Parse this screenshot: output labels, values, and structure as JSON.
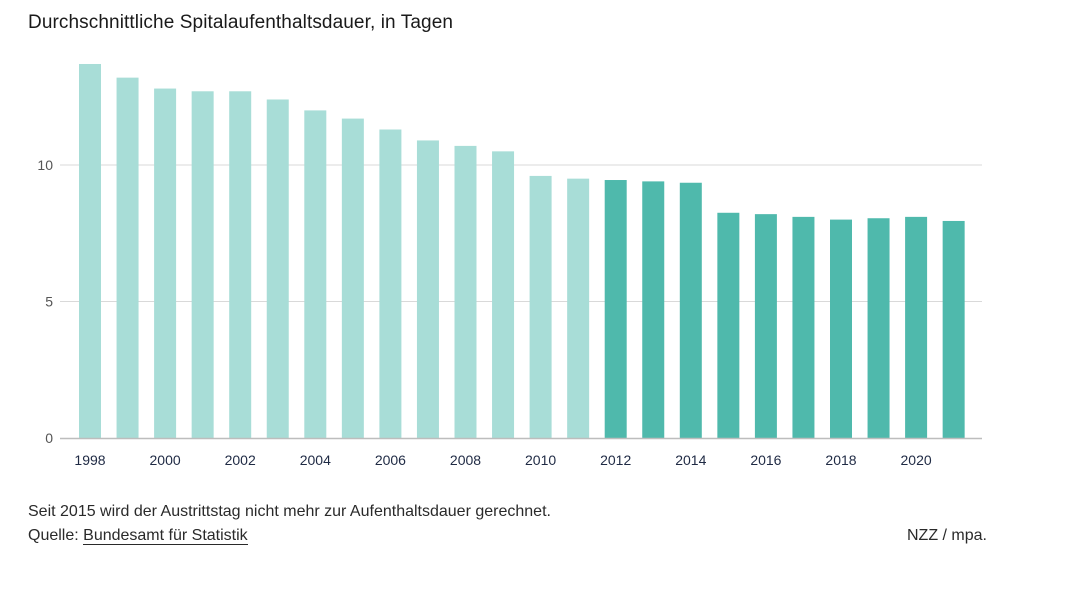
{
  "chart_data": {
    "type": "bar",
    "title": "Durchschnittliche Spitalaufenthaltsdauer, in Tagen",
    "xlabel": "",
    "ylabel": "",
    "ylim": [
      0,
      13.8
    ],
    "yticks": [
      0,
      5,
      10
    ],
    "xtick_labels": [
      "1998",
      "2000",
      "2002",
      "2004",
      "2006",
      "2008",
      "2010",
      "2012",
      "2014",
      "2016",
      "2018",
      "2020"
    ],
    "categories": [
      "1998",
      "1999",
      "2000",
      "2001",
      "2002",
      "2003",
      "2004",
      "2005",
      "2006",
      "2007",
      "2008",
      "2009",
      "2010",
      "2011",
      "2012",
      "2013",
      "2014",
      "2015",
      "2016",
      "2017",
      "2018",
      "2019",
      "2020",
      "2021"
    ],
    "values": [
      13.7,
      13.2,
      12.8,
      12.7,
      12.7,
      12.4,
      12.0,
      11.7,
      11.3,
      10.9,
      10.7,
      10.5,
      9.6,
      9.5,
      9.45,
      9.4,
      9.35,
      8.25,
      8.2,
      8.1,
      8.0,
      8.05,
      8.1,
      7.95
    ],
    "highlight_from_index": 14,
    "grid": true,
    "colors": {
      "light": "#a8ddd7",
      "dark": "#4fb9ac",
      "grid": "#d9d9d9",
      "baseline": "#bdbdbd",
      "tick": "#555555"
    }
  },
  "footer": {
    "note": "Seit 2015 wird der Austrittstag nicht mehr zur Aufenthaltsdauer gerechnet.",
    "source_prefix": "Quelle: ",
    "source_link": "Bundesamt für Statistik",
    "credit": "NZZ / mpa."
  }
}
